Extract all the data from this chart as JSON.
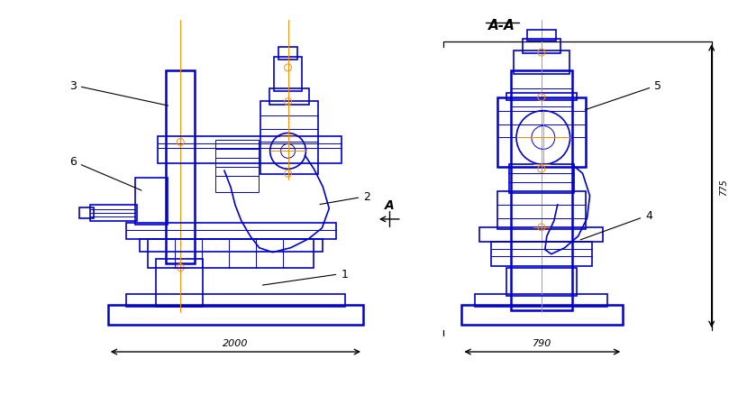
{
  "title": "A-A",
  "blue": "#0000CC",
  "orange": "#FF8C00",
  "black": "#000000",
  "bg": "#FFFFFF",
  "dim_2000": "2000",
  "dim_790": "790",
  "dim_height": "775",
  "label_A": "A",
  "labels": [
    "1",
    "2",
    "3",
    "4",
    "5",
    "6"
  ],
  "fig_width": 8.19,
  "fig_height": 4.6,
  "dpi": 100
}
